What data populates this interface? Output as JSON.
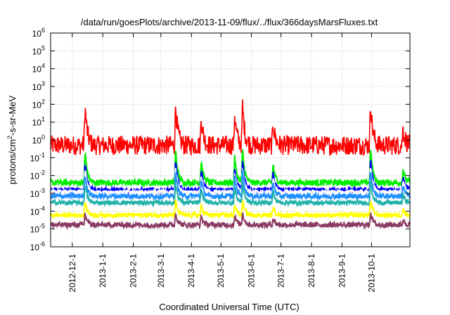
{
  "chart_data": {
    "type": "line",
    "title": "/data/run/goesPlots/archive/2013-11-09/flux/../flux/366daysMarsFluxes.txt",
    "xlabel": "Coordinated Universal Time (UTC)",
    "ylabel": "protons/cm2-s-sr-MeV",
    "ylabel_parts": {
      "before": "protons/cm",
      "sup": "2",
      "after": "-s-sr-MeV"
    },
    "xlim": [
      "2012-11-09",
      "2013-11-09"
    ],
    "x_tick_dates": [
      "2012-12-01",
      "2013-01-01",
      "2013-02-01",
      "2013-03-01",
      "2013-04-01",
      "2013-05-01",
      "2013-06-01",
      "2013-07-01",
      "2013-08-01",
      "2013-09-01",
      "2013-10-01"
    ],
    "x_tick_labels": [
      "2012-12-1",
      "2013-1-1",
      "2013-2-1",
      "2013-3-1",
      "2013-4-1",
      "2013-5-1",
      "2013-6-1",
      "2013-7-1",
      "2013-8-1",
      "2013-9-1",
      "2013-10-1"
    ],
    "y_scale": "log",
    "ylim": [
      1e-06,
      1000000
    ],
    "y_tick_exponents": [
      -6,
      -5,
      -4,
      -3,
      -2,
      -1,
      0,
      1,
      2,
      3,
      4,
      5,
      6
    ],
    "grid": true,
    "series": [
      {
        "color": "#ff0000",
        "baseline": 0.5
      },
      {
        "color": "#00ee00",
        "baseline": 0.004
      },
      {
        "color": "#0000ff",
        "baseline": 0.0015
      },
      {
        "color": "#ffffff",
        "baseline": 0.0012
      },
      {
        "color": "#1e90ff",
        "baseline": 0.0007
      },
      {
        "color": "#20b2aa",
        "baseline": 0.0003
      },
      {
        "color": "#ffff00",
        "baseline": 6e-05
      },
      {
        "color": "#8b3a62",
        "baseline": 1.7e-05
      }
    ],
    "events": [
      {
        "date": "2012-12-14",
        "peak_red": 80
      },
      {
        "date": "2013-03-16",
        "peak_red": 100
      },
      {
        "date": "2013-04-11",
        "peak_red": 20
      },
      {
        "date": "2013-05-15",
        "peak_red": 30
      },
      {
        "date": "2013-05-23",
        "peak_red": 100
      },
      {
        "date": "2013-06-23",
        "peak_red": 10
      },
      {
        "date": "2013-09-30",
        "peak_red": 150
      },
      {
        "date": "2013-11-02",
        "peak_red": 5
      }
    ]
  }
}
